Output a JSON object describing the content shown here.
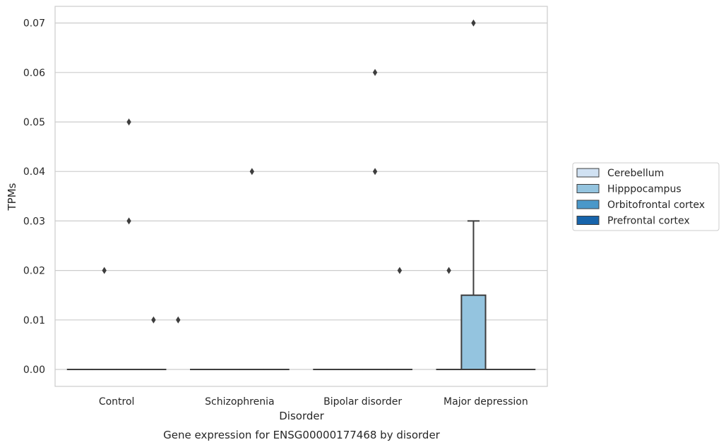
{
  "chart_data": {
    "type": "box",
    "title": "",
    "caption": "Gene expression for ENSG00000177468 by disorder",
    "xlabel": "Disorder",
    "ylabel": "TPMs",
    "categories": [
      "Control",
      "Schizophrenia",
      "Bipolar disorder",
      "Major depression"
    ],
    "ylim": [
      -0.0035,
      0.0735
    ],
    "yticks": [
      "0.00",
      "0.01",
      "0.02",
      "0.03",
      "0.04",
      "0.05",
      "0.06",
      "0.07"
    ],
    "grid": true,
    "legend": {
      "placement": "right"
    },
    "series": [
      {
        "name": "Cerebellum",
        "color": "#d0e1f2",
        "boxes": [
          {
            "q1": 0,
            "median": 0,
            "q3": 0,
            "whisker_low": 0,
            "whisker_high": 0,
            "outliers": []
          },
          {
            "q1": 0,
            "median": 0,
            "q3": 0,
            "whisker_low": 0,
            "whisker_high": 0,
            "outliers": []
          },
          {
            "q1": 0,
            "median": 0,
            "q3": 0,
            "whisker_low": 0,
            "whisker_high": 0,
            "outliers": []
          },
          {
            "q1": 0,
            "median": 0,
            "q3": 0,
            "whisker_low": 0,
            "whisker_high": 0,
            "outliers": [
              0.02
            ]
          }
        ]
      },
      {
        "name": "Hipppocampus",
        "color": "#94c4df",
        "boxes": [
          {
            "q1": 0,
            "median": 0,
            "q3": 0,
            "whisker_low": 0,
            "whisker_high": 0,
            "outliers": [
              0.02
            ]
          },
          {
            "q1": 0,
            "median": 0,
            "q3": 0,
            "whisker_low": 0,
            "whisker_high": 0,
            "outliers": []
          },
          {
            "q1": 0,
            "median": 0,
            "q3": 0,
            "whisker_low": 0,
            "whisker_high": 0,
            "outliers": []
          },
          {
            "q1": 0,
            "median": 0,
            "q3": 0.015,
            "whisker_low": 0,
            "whisker_high": 0.03,
            "outliers": [
              0.07
            ]
          }
        ]
      },
      {
        "name": "Orbitofrontal cortex",
        "color": "#4a98c9",
        "boxes": [
          {
            "q1": 0,
            "median": 0,
            "q3": 0,
            "whisker_low": 0,
            "whisker_high": 0,
            "outliers": [
              0.03,
              0.05
            ]
          },
          {
            "q1": 0,
            "median": 0,
            "q3": 0,
            "whisker_low": 0,
            "whisker_high": 0,
            "outliers": [
              0.04
            ]
          },
          {
            "q1": 0,
            "median": 0,
            "q3": 0,
            "whisker_low": 0,
            "whisker_high": 0,
            "outliers": [
              0.04,
              0.06
            ]
          },
          {
            "q1": 0,
            "median": 0,
            "q3": 0,
            "whisker_low": 0,
            "whisker_high": 0,
            "outliers": []
          }
        ]
      },
      {
        "name": "Prefrontal cortex",
        "color": "#1764ab",
        "boxes": [
          {
            "q1": 0,
            "median": 0,
            "q3": 0,
            "whisker_low": 0,
            "whisker_high": 0,
            "outliers": [
              0.01
            ]
          },
          {
            "q1": 0,
            "median": 0,
            "q3": 0,
            "whisker_low": 0,
            "whisker_high": 0,
            "outliers": []
          },
          {
            "q1": 0,
            "median": 0,
            "q3": 0,
            "whisker_low": 0,
            "whisker_high": 0,
            "outliers": [
              0.02
            ]
          },
          {
            "q1": 0,
            "median": 0,
            "q3": 0,
            "whisker_low": 0,
            "whisker_high": 0,
            "outliers": []
          }
        ]
      }
    ],
    "extra_outliers": [
      {
        "category": 0,
        "series": 3,
        "value": 0.01,
        "offset": 1
      }
    ]
  }
}
